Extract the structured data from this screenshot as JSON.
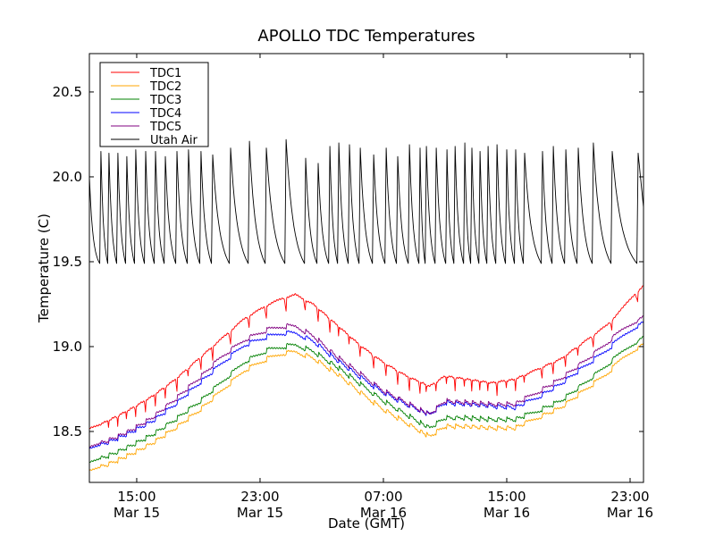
{
  "chart_data": {
    "type": "line",
    "title": "APOLLO TDC Temperatures",
    "xlabel": "Date (GMT)",
    "ylabel": "Temperature (C)",
    "x_units": "hours since Mar 15 00:00 GMT",
    "xlim": [
      11.93,
      47.87
    ],
    "ylim": [
      18.2,
      20.726
    ],
    "grid": false,
    "legend_position": "top-left",
    "yticks": [
      {
        "value": 18.5,
        "label": "18.5"
      },
      {
        "value": 19.0,
        "label": "19.0"
      },
      {
        "value": 19.5,
        "label": "19.5"
      },
      {
        "value": 20.0,
        "label": "20.0"
      },
      {
        "value": 20.5,
        "label": "20.5"
      }
    ],
    "xticks": [
      {
        "value": 15,
        "time": "15:00",
        "date": "Mar 15"
      },
      {
        "value": 23,
        "time": "23:00",
        "date": "Mar 15"
      },
      {
        "value": 31,
        "time": "07:00",
        "date": "Mar 16"
      },
      {
        "value": 39,
        "time": "15:00",
        "date": "Mar 16"
      },
      {
        "value": 47,
        "time": "23:00",
        "date": "Mar 16"
      }
    ],
    "series": [
      {
        "name": "TDC1",
        "color": "#ff0000",
        "x": [
          11.93,
          13.0,
          14.5,
          16.0,
          17.5,
          19.0,
          20.5,
          22.0,
          23.5,
          24.5,
          25.3,
          26.5,
          28.0,
          29.5,
          31.0,
          32.5,
          34.0,
          35.0,
          36.5,
          38.0,
          39.5,
          41.0,
          42.5,
          44.0,
          45.5,
          46.5,
          47.87
        ],
        "y": [
          18.52,
          18.55,
          18.62,
          18.7,
          18.8,
          18.92,
          19.04,
          19.16,
          19.24,
          19.28,
          19.3,
          19.24,
          19.12,
          19.0,
          18.9,
          18.82,
          18.76,
          18.82,
          18.8,
          18.78,
          18.8,
          18.86,
          18.92,
          19.02,
          19.12,
          19.22,
          19.36
        ]
      },
      {
        "name": "TDC2",
        "color": "#ffa500",
        "x": [
          11.93,
          13.0,
          14.5,
          16.0,
          17.5,
          19.0,
          20.5,
          22.0,
          23.5,
          24.5,
          25.3,
          26.5,
          28.0,
          29.5,
          31.0,
          32.5,
          34.0,
          35.0,
          36.5,
          38.0,
          39.5,
          41.0,
          42.5,
          44.0,
          45.5,
          46.5,
          47.87
        ],
        "y": [
          18.27,
          18.3,
          18.36,
          18.43,
          18.52,
          18.62,
          18.74,
          18.86,
          18.93,
          18.96,
          18.97,
          18.93,
          18.84,
          18.73,
          18.63,
          18.55,
          18.47,
          18.53,
          18.53,
          18.52,
          18.52,
          18.58,
          18.64,
          18.74,
          18.84,
          18.93,
          19.02
        ]
      },
      {
        "name": "TDC3",
        "color": "#008000",
        "x": [
          11.93,
          13.0,
          14.5,
          16.0,
          17.5,
          19.0,
          20.5,
          22.0,
          23.5,
          24.5,
          25.3,
          26.5,
          28.0,
          29.5,
          31.0,
          32.5,
          34.0,
          35.0,
          36.5,
          38.0,
          39.5,
          41.0,
          42.5,
          44.0,
          45.5,
          46.5,
          47.87
        ],
        "y": [
          18.32,
          18.35,
          18.41,
          18.48,
          18.57,
          18.67,
          18.79,
          18.91,
          18.98,
          19.0,
          19.01,
          18.97,
          18.88,
          18.78,
          18.68,
          18.6,
          18.52,
          18.58,
          18.58,
          18.57,
          18.57,
          18.62,
          18.68,
          18.78,
          18.89,
          18.97,
          19.06
        ]
      },
      {
        "name": "TDC4",
        "color": "#0000ff",
        "x": [
          11.93,
          13.0,
          14.5,
          16.0,
          17.5,
          19.0,
          20.5,
          22.0,
          23.5,
          24.5,
          25.3,
          26.5,
          28.0,
          29.5,
          31.0,
          32.5,
          34.0,
          35.0,
          36.5,
          38.0,
          39.5,
          41.0,
          42.5,
          44.0,
          45.5,
          46.5,
          47.87
        ],
        "y": [
          18.4,
          18.43,
          18.49,
          18.56,
          18.66,
          18.78,
          18.9,
          19.01,
          19.06,
          19.08,
          19.08,
          19.03,
          18.92,
          18.82,
          18.73,
          18.66,
          18.6,
          18.67,
          18.66,
          18.65,
          18.64,
          18.7,
          18.78,
          18.88,
          18.98,
          19.06,
          19.15
        ]
      },
      {
        "name": "TDC5",
        "color": "#800080",
        "x": [
          11.93,
          13.0,
          14.5,
          16.0,
          17.5,
          19.0,
          20.5,
          22.0,
          23.5,
          24.5,
          25.3,
          26.5,
          28.0,
          29.5,
          31.0,
          32.5,
          34.0,
          35.0,
          36.5,
          38.0,
          39.5,
          41.0,
          42.5,
          44.0,
          45.5,
          46.5,
          47.87
        ],
        "y": [
          18.41,
          18.44,
          18.5,
          18.58,
          18.69,
          18.81,
          18.94,
          19.04,
          19.1,
          19.12,
          19.12,
          19.06,
          18.94,
          18.84,
          18.74,
          18.67,
          18.6,
          18.68,
          18.67,
          18.66,
          18.66,
          18.73,
          18.81,
          18.91,
          19.02,
          19.1,
          19.18
        ]
      },
      {
        "name": "Utah Air",
        "color": "#000000",
        "trough": 19.49,
        "start": {
          "x": 11.93,
          "y": 20.0
        },
        "peaks_x": [
          12.68,
          13.2,
          13.78,
          14.36,
          14.94,
          15.58,
          16.22,
          16.86,
          17.61,
          18.36,
          19.17,
          19.93,
          21.09,
          22.31,
          23.41,
          24.69,
          25.96,
          26.77,
          27.53,
          28.11,
          28.8,
          29.5,
          30.37,
          31.18,
          31.93,
          32.69,
          33.38,
          33.79,
          34.43,
          35.12,
          35.65,
          36.28,
          36.74,
          37.27,
          37.79,
          38.37,
          39.0,
          39.58,
          40.16,
          41.32,
          42.02,
          42.83,
          43.64,
          44.62,
          45.84,
          47.52
        ],
        "peaks_y": [
          20.15,
          20.14,
          20.14,
          20.12,
          20.16,
          20.15,
          20.15,
          20.12,
          20.15,
          20.16,
          20.15,
          20.13,
          20.17,
          20.21,
          20.17,
          20.22,
          20.11,
          20.08,
          20.18,
          20.2,
          20.19,
          20.17,
          20.13,
          20.17,
          20.12,
          20.19,
          20.17,
          20.18,
          20.17,
          20.16,
          20.18,
          20.2,
          20.17,
          20.15,
          20.18,
          20.19,
          20.16,
          20.16,
          20.14,
          20.15,
          20.18,
          20.16,
          20.17,
          20.2,
          20.15,
          20.14
        ],
        "end": {
          "x": 47.87,
          "y": 19.82
        }
      }
    ]
  }
}
